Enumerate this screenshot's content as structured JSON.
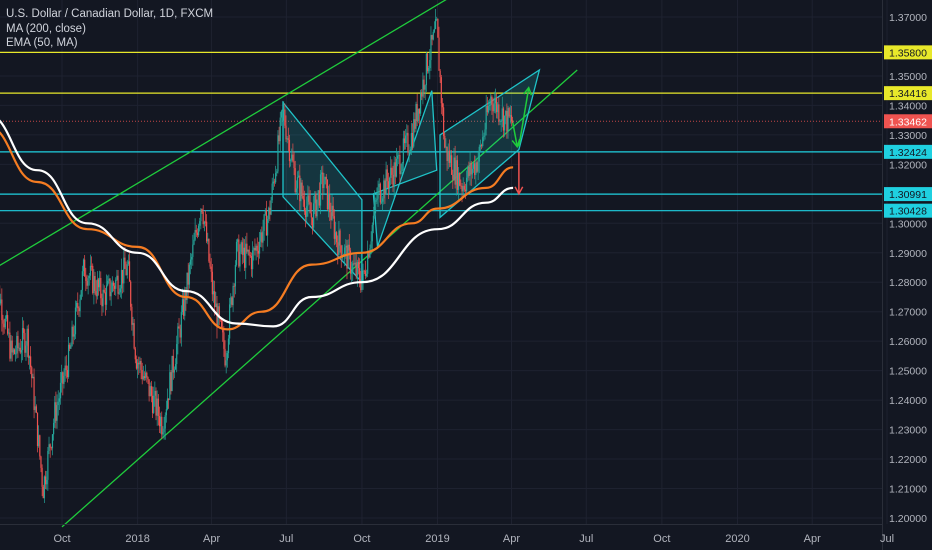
{
  "legend": {
    "symbol": "U.S. Dollar / Canadian Dollar, 1D, FXCM",
    "ma": "MA (200, close)",
    "ema": "EMA (50, MA)"
  },
  "colors": {
    "background": "#131722",
    "grid": "#1e2230",
    "axis_text": "#b2b5be",
    "candle_up": "#26a69a",
    "candle_down": "#ef5350",
    "ma": "#ffffff",
    "ema": "#f57c22",
    "channel": "#1fcc3c",
    "pattern": "#1fc3c8",
    "horizontal_yellow": "#e8e82a",
    "horizontal_cyan": "#1fd0e0",
    "last_price": "#ef5350"
  },
  "chart_data": {
    "type": "candlestick",
    "title": "U.S. Dollar / Canadian Dollar, 1D, FXCM",
    "grid": true,
    "ylim": [
      1.195,
      1.373
    ],
    "x_ticks": [
      "Oct",
      "2018",
      "Apr",
      "Jul",
      "Oct",
      "2019",
      "Apr",
      "Jul",
      "Oct",
      "2020",
      "Apr",
      "Jul"
    ],
    "x_tick_dates": [
      "2017-10-01",
      "2018-01-01",
      "2018-04-01",
      "2018-07-01",
      "2018-10-01",
      "2019-01-01",
      "2019-04-01",
      "2019-07-01",
      "2019-10-01",
      "2020-01-01",
      "2020-04-01",
      "2020-07-01"
    ],
    "y_ticks": [
      "1.37000",
      "1.35000",
      "1.34000",
      "1.33000",
      "1.32000",
      "1.30000",
      "1.29000",
      "1.28000",
      "1.27000",
      "1.26000",
      "1.25000",
      "1.24000",
      "1.23000",
      "1.22000",
      "1.21000",
      "1.20000"
    ],
    "y_tick_values": [
      1.37,
      1.35,
      1.34,
      1.33,
      1.32,
      1.3,
      1.29,
      1.28,
      1.27,
      1.26,
      1.25,
      1.24,
      1.23,
      1.22,
      1.21,
      1.2
    ],
    "price_path": [
      {
        "date": "2017-07-10",
        "value": 1.285
      },
      {
        "date": "2017-08-01",
        "value": 1.255
      },
      {
        "date": "2017-08-20",
        "value": 1.262
      },
      {
        "date": "2017-09-08",
        "value": 1.21
      },
      {
        "date": "2017-09-22",
        "value": 1.235
      },
      {
        "date": "2017-10-10",
        "value": 1.255
      },
      {
        "date": "2017-10-28",
        "value": 1.285
      },
      {
        "date": "2017-11-20",
        "value": 1.275
      },
      {
        "date": "2017-12-20",
        "value": 1.285
      },
      {
        "date": "2017-12-30",
        "value": 1.255
      },
      {
        "date": "2018-01-31",
        "value": 1.232
      },
      {
        "date": "2018-02-20",
        "value": 1.262
      },
      {
        "date": "2018-03-20",
        "value": 1.308
      },
      {
        "date": "2018-04-03",
        "value": 1.275
      },
      {
        "date": "2018-04-18",
        "value": 1.255
      },
      {
        "date": "2018-05-01",
        "value": 1.29
      },
      {
        "date": "2018-05-20",
        "value": 1.288
      },
      {
        "date": "2018-06-10",
        "value": 1.303
      },
      {
        "date": "2018-06-27",
        "value": 1.338
      },
      {
        "date": "2018-07-12",
        "value": 1.315
      },
      {
        "date": "2018-08-01",
        "value": 1.302
      },
      {
        "date": "2018-08-15",
        "value": 1.315
      },
      {
        "date": "2018-08-31",
        "value": 1.295
      },
      {
        "date": "2018-09-20",
        "value": 1.285
      },
      {
        "date": "2018-10-02",
        "value": 1.28
      },
      {
        "date": "2018-10-20",
        "value": 1.31
      },
      {
        "date": "2018-11-10",
        "value": 1.318
      },
      {
        "date": "2018-12-01",
        "value": 1.33
      },
      {
        "date": "2018-12-20",
        "value": 1.355
      },
      {
        "date": "2018-12-31",
        "value": 1.366
      },
      {
        "date": "2019-01-10",
        "value": 1.325
      },
      {
        "date": "2019-01-31",
        "value": 1.313
      },
      {
        "date": "2019-02-20",
        "value": 1.322
      },
      {
        "date": "2019-03-07",
        "value": 1.343
      },
      {
        "date": "2019-03-25",
        "value": 1.335
      },
      {
        "date": "2019-04-03",
        "value": 1.3346
      }
    ],
    "ma_200": [
      {
        "date": "2017-07-01",
        "value": 1.337
      },
      {
        "date": "2017-09-01",
        "value": 1.318
      },
      {
        "date": "2017-11-01",
        "value": 1.3
      },
      {
        "date": "2018-01-01",
        "value": 1.29
      },
      {
        "date": "2018-03-01",
        "value": 1.277
      },
      {
        "date": "2018-05-01",
        "value": 1.266
      },
      {
        "date": "2018-06-15",
        "value": 1.265
      },
      {
        "date": "2018-08-01",
        "value": 1.275
      },
      {
        "date": "2018-10-01",
        "value": 1.28
      },
      {
        "date": "2019-01-01",
        "value": 1.298
      },
      {
        "date": "2019-03-01",
        "value": 1.307
      },
      {
        "date": "2019-04-03",
        "value": 1.312
      }
    ],
    "ema_50": [
      {
        "date": "2017-07-01",
        "value": 1.333
      },
      {
        "date": "2017-09-01",
        "value": 1.314
      },
      {
        "date": "2017-11-01",
        "value": 1.298
      },
      {
        "date": "2018-01-01",
        "value": 1.292
      },
      {
        "date": "2018-03-01",
        "value": 1.275
      },
      {
        "date": "2018-04-20",
        "value": 1.264
      },
      {
        "date": "2018-06-01",
        "value": 1.27
      },
      {
        "date": "2018-08-01",
        "value": 1.286
      },
      {
        "date": "2018-10-01",
        "value": 1.29
      },
      {
        "date": "2018-12-01",
        "value": 1.3
      },
      {
        "date": "2019-01-01",
        "value": 1.305
      },
      {
        "date": "2019-03-01",
        "value": 1.312
      },
      {
        "date": "2019-04-03",
        "value": 1.319
      }
    ],
    "horizontal_levels": [
      {
        "value": 1.358,
        "label": "1.35800",
        "color": "#e8e82a"
      },
      {
        "value": 1.34416,
        "label": "1.34416",
        "color": "#e8e82a"
      },
      {
        "value": 1.33462,
        "label": "1.33462",
        "color": "#ef5350",
        "style": "last-price"
      },
      {
        "value": 1.32424,
        "label": "1.32424",
        "color": "#1fd0e0"
      },
      {
        "value": 1.30991,
        "label": "1.30991",
        "color": "#1fd0e0"
      },
      {
        "value": 1.30428,
        "label": "1.30428",
        "color": "#1fd0e0"
      }
    ],
    "drawings": {
      "channel_upper": [
        {
          "date": "2017-06-25",
          "value": 1.282
        },
        {
          "date": "2019-01-18",
          "value": 1.377
        }
      ],
      "channel_lower": [
        {
          "date": "2017-10-01",
          "value": 1.197
        },
        {
          "date": "2019-06-20",
          "value": 1.352
        }
      ],
      "rising_wedge": [
        {
          "date": "2018-06-27",
          "value": 1.341
        },
        {
          "date": "2018-10-01",
          "value": 1.308
        },
        {
          "date": "2018-10-01",
          "value": 1.28
        },
        {
          "date": "2018-06-27",
          "value": 1.309
        }
      ],
      "flag_rise": [
        {
          "date": "2018-10-20",
          "value": 1.292
        },
        {
          "date": "2018-12-25",
          "value": 1.345
        },
        {
          "date": "2018-12-31",
          "value": 1.318
        },
        {
          "date": "2018-10-15",
          "value": 1.31
        }
      ],
      "ascending_channel": [
        {
          "date": "2019-01-04",
          "value": 1.33
        },
        {
          "date": "2019-05-05",
          "value": 1.352
        },
        {
          "date": "2019-04-10",
          "value": 1.325
        },
        {
          "date": "2019-01-04",
          "value": 1.302
        }
      ],
      "arrows": [
        {
          "from": {
            "date": "2019-04-02",
            "value": 1.335
          },
          "to": {
            "date": "2019-04-08",
            "value": 1.326
          },
          "color": "#1fcc3c"
        },
        {
          "from": {
            "date": "2019-04-10",
            "value": 1.326
          },
          "to": {
            "date": "2019-04-22",
            "value": 1.346
          },
          "color": "#1fcc3c"
        },
        {
          "from": {
            "date": "2019-04-10",
            "value": 1.324
          },
          "to": {
            "date": "2019-04-10",
            "value": 1.31
          },
          "color": "#ef5350"
        }
      ]
    }
  }
}
